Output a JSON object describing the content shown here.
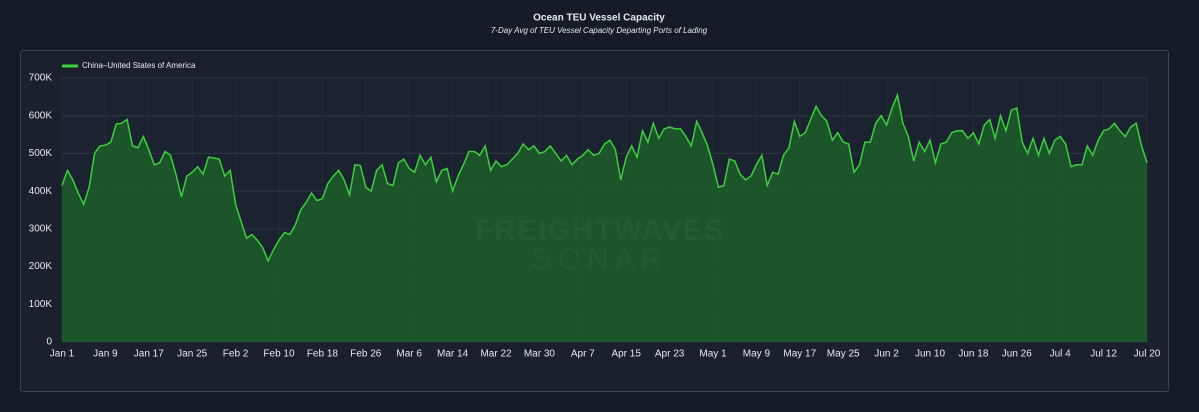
{
  "chart_data": {
    "type": "area",
    "title": "Ocean TEU Vessel Capacity",
    "subtitle": "7-Day Avg of TEU Vessel Capacity Departing Ports of Lading",
    "watermark": [
      "FREIGHTWAVES",
      "SONAR"
    ],
    "legend": "top-left",
    "grid": true,
    "categories": [
      "Jan 1",
      null,
      null,
      null,
      null,
      null,
      null,
      null,
      "Jan 9",
      null,
      null,
      null,
      null,
      null,
      null,
      null,
      "Jan 17",
      null,
      null,
      null,
      null,
      null,
      null,
      null,
      "Jan 25",
      null,
      null,
      null,
      null,
      null,
      null,
      null,
      "Feb 2",
      null,
      null,
      null,
      null,
      null,
      null,
      null,
      "Feb 10",
      null,
      null,
      null,
      null,
      null,
      null,
      null,
      "Feb 18",
      null,
      null,
      null,
      null,
      null,
      null,
      null,
      "Feb 26",
      null,
      null,
      null,
      null,
      null,
      null,
      null,
      "Mar 6",
      null,
      null,
      null,
      null,
      null,
      null,
      null,
      "Mar 14",
      null,
      null,
      null,
      null,
      null,
      null,
      null,
      "Mar 22",
      null,
      null,
      null,
      null,
      null,
      null,
      null,
      "Mar 30",
      null,
      null,
      null,
      null,
      null,
      null,
      null,
      "Apr 7",
      null,
      null,
      null,
      null,
      null,
      null,
      null,
      "Apr 15",
      null,
      null,
      null,
      null,
      null,
      null,
      null,
      "Apr 23",
      null,
      null,
      null,
      null,
      null,
      null,
      null,
      "May 1",
      null,
      null,
      null,
      null,
      null,
      null,
      null,
      "May 9",
      null,
      null,
      null,
      null,
      null,
      null,
      null,
      "May 17",
      null,
      null,
      null,
      null,
      null,
      null,
      null,
      "May 25",
      null,
      null,
      null,
      null,
      null,
      null,
      null,
      "Jun 2",
      null,
      null,
      null,
      null,
      null,
      null,
      null,
      "Jun 10",
      null,
      null,
      null,
      null,
      null,
      null,
      null,
      "Jun 18",
      null,
      null,
      null,
      null,
      null,
      null,
      null,
      "Jun 26",
      null,
      null,
      null,
      null,
      null,
      null,
      null,
      "Jul 4",
      null,
      null,
      null,
      null,
      null,
      null,
      null,
      "Jul 12",
      null,
      null,
      null,
      null,
      null,
      null,
      null,
      "Jul 20"
    ],
    "series": [
      {
        "name": "China–United States of America",
        "color": "#3ccf3c",
        "fill": "#1d5e2a",
        "values": [
          415000,
          455000,
          430000,
          395000,
          365000,
          410000,
          500000,
          520000,
          522000,
          530000,
          578000,
          580000,
          590000,
          520000,
          515000,
          545000,
          510000,
          470000,
          475000,
          505000,
          495000,
          445000,
          385000,
          440000,
          450000,
          465000,
          445000,
          490000,
          488000,
          485000,
          440000,
          455000,
          365000,
          320000,
          275000,
          285000,
          270000,
          250000,
          215000,
          245000,
          270000,
          290000,
          285000,
          310000,
          350000,
          370000,
          395000,
          375000,
          380000,
          420000,
          440000,
          455000,
          430000,
          390000,
          470000,
          468000,
          410000,
          400000,
          455000,
          470000,
          420000,
          415000,
          475000,
          485000,
          460000,
          450000,
          495000,
          470000,
          490000,
          425000,
          455000,
          460000,
          400000,
          440000,
          470000,
          505000,
          505000,
          495000,
          520000,
          455000,
          480000,
          465000,
          470000,
          485000,
          500000,
          525000,
          510000,
          520000,
          500000,
          505000,
          520000,
          500000,
          480000,
          495000,
          470000,
          485000,
          495000,
          510000,
          495000,
          500000,
          525000,
          535000,
          510000,
          430000,
          490000,
          520000,
          490000,
          560000,
          530000,
          580000,
          540000,
          565000,
          570000,
          565000,
          565000,
          545000,
          520000,
          585000,
          555000,
          520000,
          470000,
          410000,
          415000,
          485000,
          480000,
          445000,
          430000,
          440000,
          470000,
          495000,
          415000,
          450000,
          445000,
          495000,
          515000,
          585000,
          545000,
          555000,
          590000,
          625000,
          600000,
          585000,
          535000,
          555000,
          530000,
          525000,
          450000,
          470000,
          530000,
          530000,
          580000,
          600000,
          575000,
          620000,
          655000,
          580000,
          545000,
          480000,
          530000,
          505000,
          535000,
          475000,
          525000,
          530000,
          555000,
          560000,
          560000,
          540000,
          555000,
          525000,
          575000,
          590000,
          540000,
          600000,
          560000,
          615000,
          620000,
          530000,
          500000,
          540000,
          495000,
          540000,
          500000,
          535000,
          545000,
          525000,
          465000,
          470000,
          470000,
          520000,
          495000,
          535000,
          560000,
          565000,
          580000,
          560000,
          545000,
          570000,
          580000,
          520000,
          475000
        ]
      }
    ],
    "ylim": [
      0,
      700000
    ],
    "yticks": [
      0,
      {
        "value": 100000,
        "label": "100K"
      },
      {
        "value": 200000,
        "label": "200K"
      },
      {
        "value": 300000,
        "label": "300K"
      },
      {
        "value": 400000,
        "label": "400K"
      },
      {
        "value": 500000,
        "label": "500K"
      },
      {
        "value": 600000,
        "label": "600K"
      },
      {
        "value": 700000,
        "label": "700K"
      }
    ]
  }
}
